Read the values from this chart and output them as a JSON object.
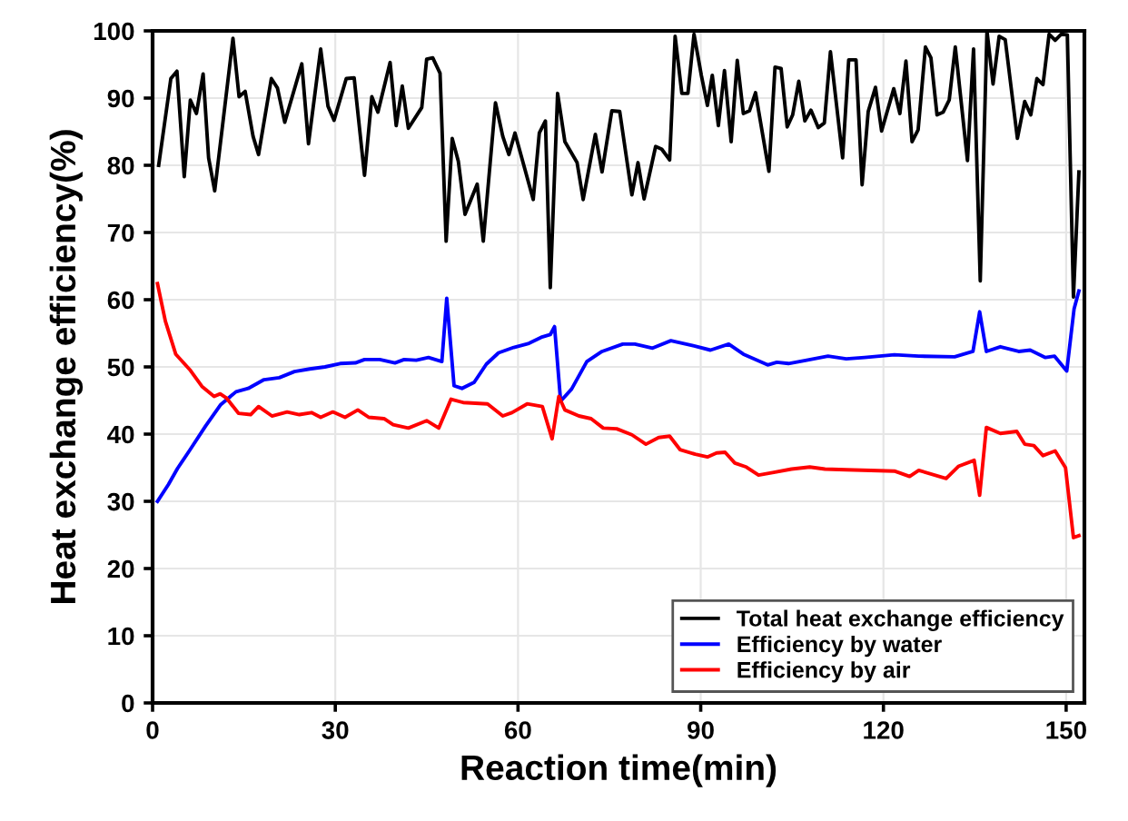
{
  "chart_data": {
    "type": "line",
    "xlabel": "Reaction time(min)",
    "ylabel": "Heat exchange efficiency(%)",
    "xlim": [
      0,
      153
    ],
    "xticks": [
      0,
      30,
      60,
      90,
      120,
      150
    ],
    "ylim": [
      0,
      100
    ],
    "yticks": [
      0,
      10,
      20,
      30,
      40,
      50,
      60,
      70,
      80,
      90,
      100
    ],
    "grid": true,
    "legend": "bottom right",
    "marker": "none",
    "line_style": "solid",
    "series": [
      {
        "name": "Total heat exchange efficiency",
        "color": "#000000",
        "x": [
          1,
          3,
          4,
          5.2,
          6.2,
          7.2,
          8.3,
          9.2,
          10.2,
          11.5,
          13.2,
          14.2,
          15.2,
          16.5,
          17.4,
          19.5,
          20.5,
          21.7,
          24.5,
          25.6,
          27.6,
          28.8,
          29.8,
          31.8,
          33.1,
          34.8,
          36,
          37,
          39,
          40,
          41,
          42,
          44.2,
          45,
          46,
          47.2,
          48.2,
          49.2,
          50.2,
          51.3,
          53.3,
          54.3,
          56.3,
          57.5,
          58.5,
          59.5,
          62.5,
          63.5,
          64.5,
          65.3,
          66.5,
          67.7,
          69.7,
          70.7,
          72.7,
          73.8,
          75.4,
          76.7,
          78.7,
          79.7,
          80.7,
          82.6,
          83.6,
          84.9,
          85.8,
          86.9,
          87.9,
          88.9,
          90.1,
          91.1,
          91.9,
          92.9,
          93.9,
          95,
          96,
          97,
          98,
          99,
          101.2,
          102.2,
          103.2,
          104.2,
          105.1,
          106.1,
          107.1,
          108.1,
          109.3,
          110.3,
          111.3,
          113.3,
          114.3,
          115.5,
          116.5,
          117.5,
          118.7,
          119.7,
          121.7,
          122.7,
          123.7,
          124.7,
          125.7,
          126.9,
          127.8,
          128.8,
          129.8,
          130.8,
          131.8,
          133.8,
          134.8,
          135.9,
          137,
          138,
          139,
          140,
          142,
          143.2,
          144.2,
          145.2,
          146.2,
          147.2,
          148.2,
          149.2,
          150.2,
          151.2,
          152.1
        ],
        "values": [
          80,
          92.9,
          94,
          78.3,
          89.7,
          87.7,
          93.6,
          81.1,
          76.2,
          86,
          98.9,
          90.2,
          91,
          84.3,
          81.6,
          92.9,
          91.5,
          86.4,
          95.1,
          83.2,
          97.3,
          88.8,
          86.7,
          92.9,
          93,
          78.5,
          90.2,
          87.9,
          95.3,
          85.9,
          91.8,
          85.5,
          88.6,
          95.8,
          96,
          93.7,
          68.7,
          84,
          80.6,
          72.7,
          77.2,
          68.7,
          89.3,
          84.3,
          81.6,
          84.8,
          74.9,
          84.8,
          86.6,
          61.8,
          90.7,
          83.5,
          80.4,
          74.9,
          84.6,
          79,
          88.1,
          88,
          75.6,
          80.4,
          75,
          82.8,
          82.4,
          80.8,
          99.2,
          90.7,
          90.7,
          99.5,
          93.4,
          88.9,
          93.4,
          85.9,
          94.1,
          83.5,
          95.6,
          87.7,
          88.1,
          90.8,
          79.1,
          94.6,
          94.4,
          85.7,
          87.5,
          92.5,
          86.6,
          88.2,
          85.6,
          86.3,
          96.9,
          81.1,
          95.7,
          95.7,
          77.1,
          88,
          91.6,
          85.1,
          91.4,
          87.7,
          95.5,
          83.5,
          85.3,
          97.6,
          96,
          87.5,
          87.9,
          89.7,
          97.6,
          80.7,
          97.3,
          62.8,
          100,
          92.1,
          99.2,
          98.7,
          84,
          89.5,
          87.5,
          92.9,
          92,
          99.5,
          98.6,
          99.5,
          99.4,
          60.4,
          79
        ]
      },
      {
        "name": "Efficiency by water",
        "color": "#0000ff",
        "x": [
          0.8,
          2.6,
          4.1,
          6.1,
          8.7,
          11.2,
          13.7,
          15.7,
          18.3,
          20.8,
          23.3,
          25.8,
          28.3,
          30.8,
          33.3,
          34.8,
          37.3,
          39.8,
          41.3,
          43.3,
          45.3,
          47.5,
          48.3,
          49.5,
          50.8,
          52.8,
          54.8,
          56.8,
          59.3,
          61.8,
          63.8,
          65.3,
          66,
          67,
          68.8,
          71.3,
          73.8,
          77.2,
          79.2,
          82.1,
          85.1,
          88.6,
          91.6,
          94.6,
          97,
          101,
          102.5,
          104.4,
          107.4,
          110.9,
          113.9,
          116.9,
          121.8,
          125.8,
          131.7,
          134.7,
          135.8,
          136.9,
          139.2,
          142.2,
          144.1,
          146.6,
          148.1,
          150.1,
          151.3,
          152.1
        ],
        "values": [
          30,
          32.5,
          34.9,
          37.6,
          41.2,
          44.4,
          46.3,
          46.8,
          48.1,
          48.4,
          49.3,
          49.7,
          50,
          50.5,
          50.6,
          51.1,
          51.1,
          50.6,
          51.1,
          51,
          51.4,
          50.8,
          60.2,
          47.2,
          46.8,
          47.7,
          50.4,
          52.1,
          52.9,
          53.5,
          54.4,
          54.8,
          56,
          44.9,
          46.7,
          50.8,
          52.3,
          53.4,
          53.4,
          52.8,
          53.9,
          53.2,
          52.5,
          53.4,
          51.9,
          50.3,
          50.7,
          50.5,
          51,
          51.6,
          51.2,
          51.4,
          51.8,
          51.6,
          51.5,
          52.3,
          58.2,
          52.3,
          53,
          52.3,
          52.5,
          51.4,
          51.6,
          49.4,
          58.6,
          61.3
        ]
      },
      {
        "name": "Efficiency by air",
        "color": "#ff0000",
        "x": [
          0.8,
          2.1,
          3.8,
          6.1,
          8.1,
          10.1,
          11.1,
          12.1,
          14.1,
          16.1,
          17.4,
          19.6,
          22.1,
          24.1,
          26.1,
          27.6,
          29.6,
          31.6,
          33.7,
          35.5,
          38,
          39.5,
          42,
          45,
          47,
          49,
          51,
          55,
          57.5,
          59,
          61.5,
          64,
          65.6,
          66.7,
          67.7,
          70,
          72,
          74,
          76.2,
          78.7,
          81,
          83.1,
          84.9,
          86.6,
          89.1,
          91.1,
          92.6,
          94,
          95.6,
          97.5,
          99.5,
          102,
          104.9,
          107.9,
          110.4,
          113.9,
          117.9,
          121.8,
          124.3,
          125.8,
          130.3,
          132.3,
          134.9,
          135.8,
          136.9,
          139.2,
          141.9,
          143.2,
          144.7,
          146.2,
          148.2,
          149.9,
          151.2,
          152.1
        ],
        "values": [
          62.4,
          56.8,
          51.9,
          49.6,
          47.1,
          45.6,
          46,
          45.4,
          43.1,
          42.9,
          44.1,
          42.7,
          43.3,
          42.9,
          43.2,
          42.5,
          43.3,
          42.5,
          43.6,
          42.5,
          42.3,
          41.4,
          40.9,
          42,
          40.9,
          45.2,
          44.7,
          44.5,
          42.7,
          43.2,
          44.5,
          44.1,
          39.3,
          45.6,
          43.6,
          42.7,
          42.3,
          40.9,
          40.8,
          39.9,
          38.5,
          39.5,
          39.7,
          37.7,
          37,
          36.6,
          37.2,
          37.3,
          35.7,
          35.1,
          33.9,
          34.3,
          34.8,
          35.1,
          34.8,
          34.7,
          34.6,
          34.5,
          33.7,
          34.6,
          33.4,
          35.2,
          36.1,
          30.9,
          41,
          40.1,
          40.4,
          38.5,
          38.3,
          36.8,
          37.5,
          35,
          24.6,
          24.9
        ]
      }
    ]
  }
}
